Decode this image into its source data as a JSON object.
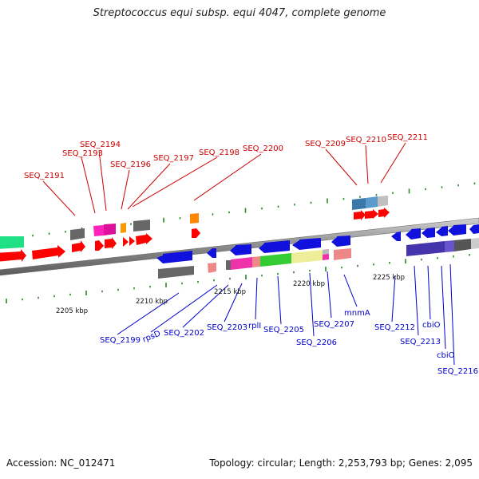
{
  "title": "Streptococcus equi subsp. equi 4047, complete genome",
  "accession": "Accession: NC_012471",
  "topology": "Topology: circular; Length: 2,253,793 bp; Genes: 2,095",
  "colors": {
    "backbone": "#8c8c8c",
    "label_forward": "#cc0000",
    "label_reverse": "#0000cc",
    "tick": "#2a8a2a"
  },
  "scale_labels": [
    "2205 kbp",
    "2210 kbp",
    "2215 kbp",
    "2220 kbp",
    "2225 kbp"
  ],
  "forward_labels": [
    "SEQ_2191",
    "SEQ_2193",
    "SEQ_2194",
    "SEQ_2196",
    "SEQ_2197",
    "SEQ_2198",
    "SEQ_2200",
    "SEQ_2209",
    "SEQ_2210",
    "SEQ_2211"
  ],
  "reverse_labels": [
    "SEQ_2199",
    "rpsD",
    "SEQ_2202",
    "SEQ_2203",
    "rplI",
    "SEQ_2205",
    "SEQ_2206",
    "SEQ_2207",
    "mnmA",
    "SEQ_2212",
    "SEQ_2213",
    "cbiO",
    "cbiO",
    "SEQ_2216"
  ]
}
